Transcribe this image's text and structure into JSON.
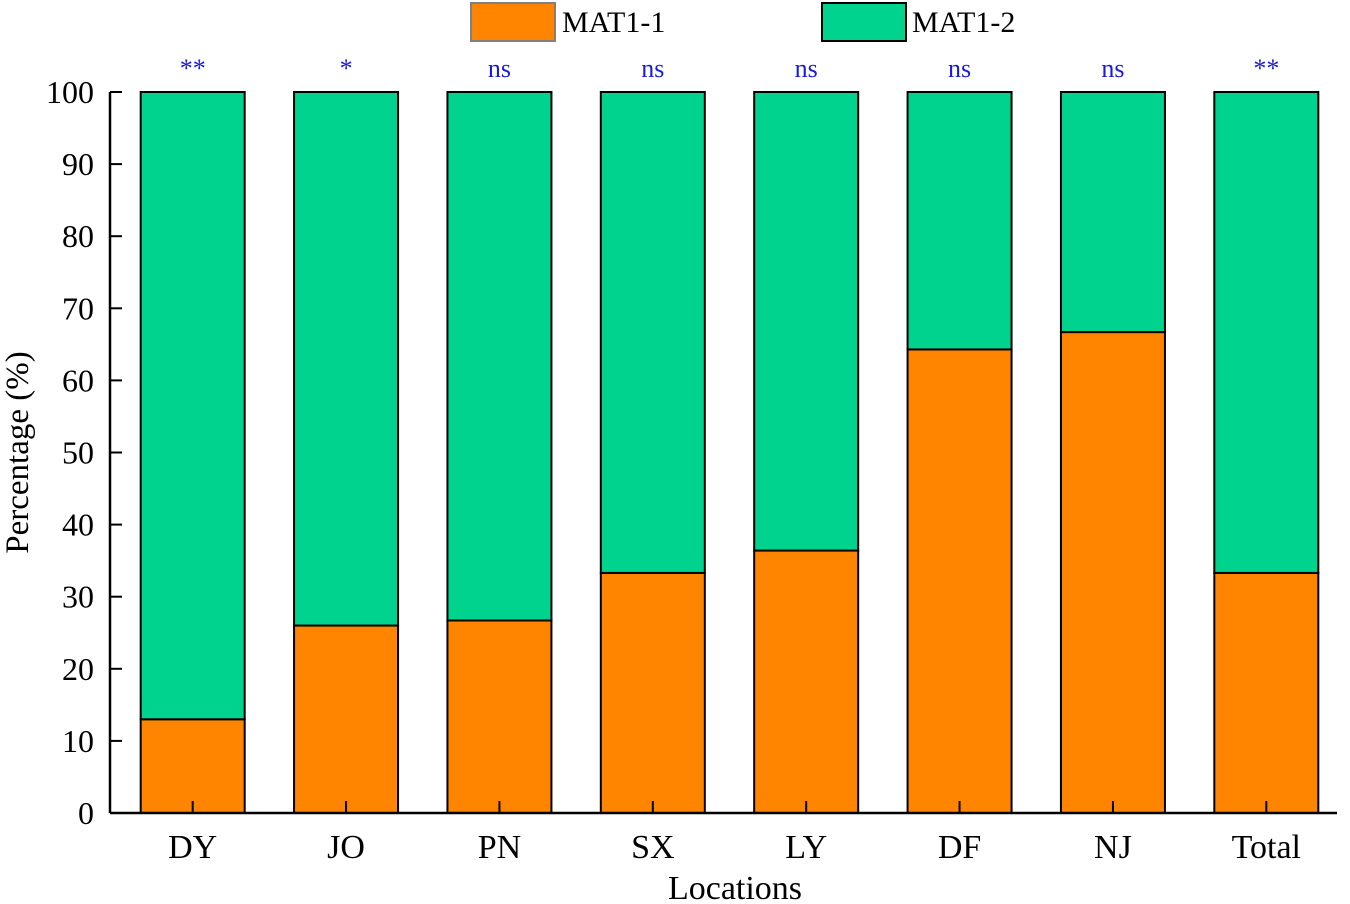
{
  "chart_data": {
    "type": "bar",
    "stacked": true,
    "title": "",
    "xlabel": "Locations",
    "ylabel": "Percentage (%)",
    "ylim": [
      0,
      100
    ],
    "yticks": [
      0,
      10,
      20,
      30,
      40,
      50,
      60,
      70,
      80,
      90,
      100
    ],
    "categories": [
      "DY",
      "JO",
      "PN",
      "SX",
      "LY",
      "DF",
      "NJ",
      "Total"
    ],
    "series": [
      {
        "name": "MAT1-1",
        "color": "#ff8400",
        "values": [
          13.0,
          26.0,
          26.7,
          33.3,
          36.4,
          64.3,
          66.7,
          33.3
        ]
      },
      {
        "name": "MAT1-2",
        "color": "#00d38d",
        "values": [
          87.0,
          74.0,
          73.3,
          66.7,
          63.6,
          35.7,
          33.3,
          66.7
        ]
      }
    ],
    "significance": [
      "**",
      "*",
      "ns",
      "ns",
      "ns",
      "ns",
      "ns",
      "**"
    ],
    "significance_color": "#1a1adc",
    "legend_position": "top-center"
  }
}
